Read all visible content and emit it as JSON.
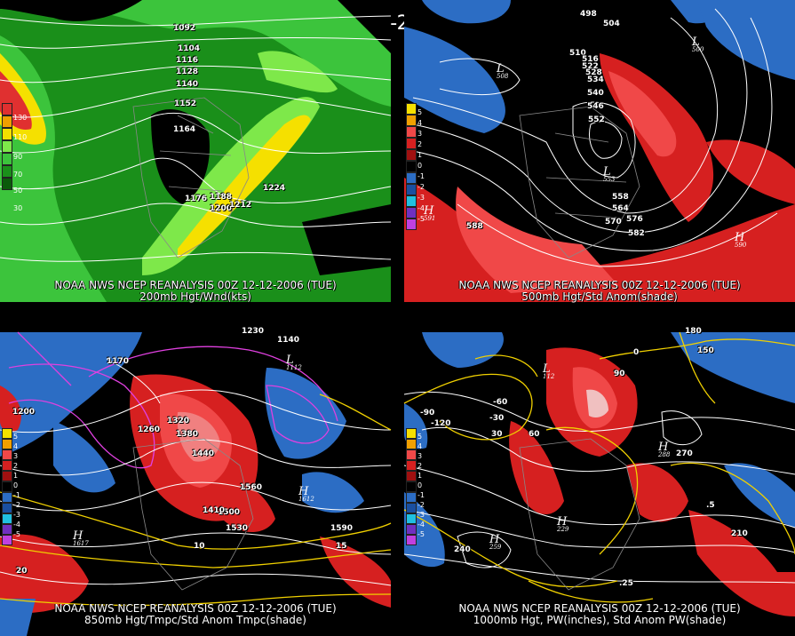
{
  "title": "00Z 12-12-2006 (TUE)",
  "panels": [
    {
      "caption_line1": "NOAA NWS NCEP REANALYSIS 00Z 12-12-2006 (TUE)",
      "caption_line2": "200mb Hgt/Wnd(kts)",
      "legend": [
        "130",
        "110",
        "90",
        "70",
        "50",
        "30"
      ],
      "labels": [
        "1092",
        "1104",
        "1116",
        "1128",
        "1140",
        "1152",
        "1164",
        "1176",
        "1188",
        "1200",
        "1212",
        "1224"
      ]
    },
    {
      "caption_line1": "NOAA NWS NCEP REANALYSIS 00Z 12-12-2006 (TUE)",
      "caption_line2": "500mb Hgt/Std Anom(shade)",
      "legend": [
        "5",
        "4",
        "3",
        "2",
        "1",
        "0",
        "-1",
        "-2",
        "-3",
        "-4",
        "-5"
      ],
      "labels": [
        "498",
        "504",
        "510",
        "516",
        "522",
        "528",
        "534",
        "540",
        "546",
        "552",
        "558",
        "564",
        "570",
        "576",
        "582",
        "588"
      ],
      "markers": [
        {
          "sym": "L",
          "val": "508"
        },
        {
          "sym": "L",
          "val": "500"
        },
        {
          "sym": "L",
          "val": "553"
        },
        {
          "sym": "H",
          "val": "591"
        },
        {
          "sym": "H",
          "val": "590"
        }
      ]
    },
    {
      "caption_line1": "NOAA NWS NCEP REANALYSIS 00Z 12-12-2006 (TUE)",
      "caption_line2": "850mb Hgt/Tmpc/Std Anom Tmpc(shade)",
      "legend": [
        "5",
        "4",
        "3",
        "2",
        "1",
        "0",
        "-1",
        "-2",
        "-3",
        "-4",
        "-5"
      ],
      "labels": [
        "1230",
        "1170",
        "1140",
        "1200",
        "1260",
        "1320",
        "1380",
        "1440",
        "1500",
        "1560",
        "1590",
        "1410",
        "1530",
        "10",
        "15",
        "20"
      ],
      "markers": [
        {
          "sym": "H",
          "val": "1612"
        },
        {
          "sym": "H",
          "val": "1617"
        },
        {
          "sym": "L",
          "val": "1112"
        }
      ]
    },
    {
      "caption_line1": "NOAA NWS NCEP REANALYSIS 00Z 12-12-2006 (TUE)",
      "caption_line2": "1000mb Hgt, PW(inches), Std Anom PW(shade)",
      "legend": [
        "5",
        "4",
        "3",
        "2",
        "1",
        "0",
        "-1",
        "-2",
        "-3",
        "-4",
        "-5"
      ],
      "labels": [
        "180",
        "150",
        "90",
        "60",
        "30",
        "0",
        "-30",
        "-60",
        "-90",
        "-120",
        "210",
        "240",
        "270",
        ".25",
        ".5"
      ],
      "markers": [
        {
          "sym": "H",
          "val": "259"
        },
        {
          "sym": "H",
          "val": "229"
        },
        {
          "sym": "H",
          "val": "288"
        },
        {
          "sym": "L",
          "val": "112"
        }
      ]
    }
  ],
  "colors": {
    "green_dark": "#1a8f1a",
    "green": "#3cc43c",
    "green_light": "#7ee84a",
    "yellow": "#f5e000",
    "orange": "#f0a000",
    "red_anom": "#d62020",
    "red_light": "#f04848",
    "blue_anom": "#2c6dc4",
    "contour_white": "#ffffff",
    "temp_magenta": "#e040e0",
    "temp_yellow": "#f0d000"
  }
}
